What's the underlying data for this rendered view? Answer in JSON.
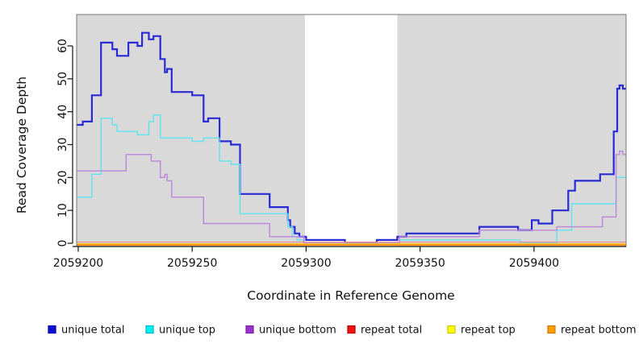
{
  "figure": {
    "background": "#ffffff",
    "panel_background": "#d9d9d9",
    "box_border_color": "#777777",
    "highlight_region": {
      "x_start": 2059299.5,
      "x_end": 2059340,
      "color": "#ffffff"
    }
  },
  "axes": {
    "x": {
      "label": "Coordinate in Reference Genome",
      "lim": [
        2059199.3,
        2059440.4
      ],
      "ticks": [
        2059200,
        2059250,
        2059300,
        2059350,
        2059400
      ],
      "tick_labels": [
        "2059200",
        "2059250",
        "2059300",
        "2059350",
        "2059400"
      ]
    },
    "y": {
      "label": "Read Coverage Depth",
      "lim": [
        0,
        69.6
      ],
      "ticks": [
        0,
        10,
        20,
        30,
        40,
        50,
        60
      ],
      "tick_labels": [
        "0",
        "10",
        "20",
        "30",
        "40",
        "50",
        "60"
      ]
    }
  },
  "chart_data": {
    "type": "line",
    "step": true,
    "title": "",
    "xlabel": "Coordinate in Reference Genome",
    "ylabel": "Read Coverage Depth",
    "xlim": [
      2059199.3,
      2059440.4
    ],
    "ylim": [
      0,
      69.6
    ],
    "grid": false,
    "legend_position": "bottom",
    "series": [
      {
        "name": "unique total",
        "color": "#2a2ad4",
        "width": 2.2,
        "points": [
          [
            2059199.3,
            36
          ],
          [
            2059202,
            37
          ],
          [
            2059206,
            45
          ],
          [
            2059210,
            61
          ],
          [
            2059215,
            59
          ],
          [
            2059217,
            57
          ],
          [
            2059222,
            61
          ],
          [
            2059226,
            60
          ],
          [
            2059228,
            64
          ],
          [
            2059231,
            62
          ],
          [
            2059233,
            63
          ],
          [
            2059236,
            56
          ],
          [
            2059238,
            52
          ],
          [
            2059239,
            53
          ],
          [
            2059241,
            46
          ],
          [
            2059250,
            45
          ],
          [
            2059255,
            37
          ],
          [
            2059257,
            38
          ],
          [
            2059262,
            31
          ],
          [
            2059267,
            30
          ],
          [
            2059271,
            15
          ],
          [
            2059284,
            11
          ],
          [
            2059292,
            7
          ],
          [
            2059293,
            5
          ],
          [
            2059295,
            3
          ],
          [
            2059297,
            2
          ],
          [
            2059300,
            1
          ],
          [
            2059317,
            0
          ],
          [
            2059331,
            1
          ],
          [
            2059340,
            2
          ],
          [
            2059344,
            3
          ],
          [
            2059376,
            5
          ],
          [
            2059393,
            4
          ],
          [
            2059399,
            7
          ],
          [
            2059402,
            6
          ],
          [
            2059408,
            10
          ],
          [
            2059415,
            16
          ],
          [
            2059418,
            19
          ],
          [
            2059429,
            21
          ],
          [
            2059435,
            34
          ],
          [
            2059436.5,
            47
          ],
          [
            2059437.5,
            48
          ],
          [
            2059439,
            47
          ]
        ]
      },
      {
        "name": "unique top",
        "color": "#5fe3ef",
        "width": 1.4,
        "points": [
          [
            2059199.3,
            14
          ],
          [
            2059206,
            21
          ],
          [
            2059210,
            38
          ],
          [
            2059215,
            36
          ],
          [
            2059217,
            34
          ],
          [
            2059226,
            33
          ],
          [
            2059231,
            37
          ],
          [
            2059233,
            39
          ],
          [
            2059236,
            32
          ],
          [
            2059250,
            31
          ],
          [
            2059255,
            32
          ],
          [
            2059262,
            25
          ],
          [
            2059267,
            24
          ],
          [
            2059271,
            9
          ],
          [
            2059292,
            5
          ],
          [
            2059294,
            2
          ],
          [
            2059296,
            1
          ],
          [
            2059299,
            0
          ],
          [
            2059341,
            1
          ],
          [
            2059394,
            0
          ],
          [
            2059410,
            4
          ],
          [
            2059416.5,
            12
          ],
          [
            2059436,
            20
          ]
        ]
      },
      {
        "name": "unique bottom",
        "color": "#bd85da",
        "width": 1.4,
        "points": [
          [
            2059199.3,
            22
          ],
          [
            2059221,
            27
          ],
          [
            2059232,
            25
          ],
          [
            2059236,
            20
          ],
          [
            2059238,
            21
          ],
          [
            2059239,
            19
          ],
          [
            2059241,
            14
          ],
          [
            2059255,
            6
          ],
          [
            2059284,
            2
          ],
          [
            2059299,
            0
          ],
          [
            2059341,
            2
          ],
          [
            2059376,
            4
          ],
          [
            2059410,
            5
          ],
          [
            2059430,
            8
          ],
          [
            2059436,
            27
          ],
          [
            2059437.5,
            28
          ],
          [
            2059439,
            27
          ]
        ]
      },
      {
        "name": "repeat total",
        "color": "#ee8094",
        "width": 1.1,
        "points": [
          [
            2059199.3,
            0
          ],
          [
            2059440.4,
            0
          ]
        ]
      },
      {
        "name": "repeat top",
        "color": "#ffff55",
        "width": 1.1,
        "points": [
          [
            2059199.3,
            0
          ],
          [
            2059440.4,
            0
          ]
        ]
      },
      {
        "name": "repeat bottom",
        "color": "#ff9712",
        "width": 2.6,
        "points": [
          [
            2059199.3,
            0
          ],
          [
            2059440.4,
            0
          ]
        ]
      }
    ]
  },
  "legend": {
    "items": [
      {
        "label": "unique total",
        "fill": "#0d0dd4",
        "border": "#0000b0"
      },
      {
        "label": "unique top",
        "fill": "#00f0f0",
        "border": "#00b6c6"
      },
      {
        "label": "unique bottom",
        "fill": "#9933cc",
        "border": "#7a22a8"
      },
      {
        "label": "repeat total",
        "fill": "#ee1111",
        "border": "#b80000"
      },
      {
        "label": "repeat top",
        "fill": "#ffff00",
        "border": "#c8c800"
      },
      {
        "label": "repeat bottom",
        "fill": "#ff9f00",
        "border": "#c87a00"
      }
    ]
  }
}
